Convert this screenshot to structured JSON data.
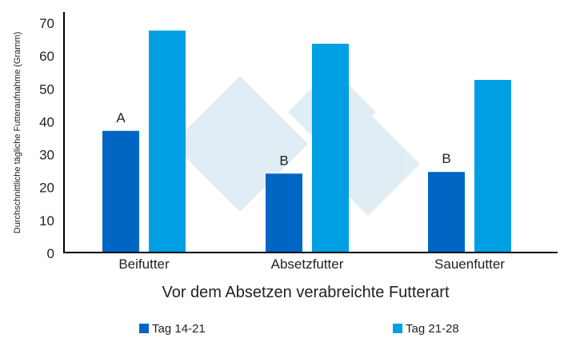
{
  "chart_data": {
    "type": "bar",
    "title": "",
    "xlabel": "Vor dem Absetzen verabreichte Futterart",
    "ylabel": "Durchschnittliche tägliche Futteraufnahme (Gramm)",
    "ylim": [
      0,
      70
    ],
    "yticks": [
      0,
      10,
      20,
      30,
      40,
      50,
      60,
      70
    ],
    "grid": false,
    "legend_position": "bottom",
    "categories": [
      "Beifutter",
      "Absetzfutter",
      "Sauenfutter"
    ],
    "series": [
      {
        "name": "Tag 14-21",
        "color": "#0066c4",
        "values": [
          37,
          24,
          24.5
        ],
        "annotations": [
          "A",
          "B",
          "B"
        ]
      },
      {
        "name": "Tag 21-28",
        "color": "#009fe3",
        "values": [
          67.5,
          63.5,
          52.5
        ]
      }
    ]
  }
}
